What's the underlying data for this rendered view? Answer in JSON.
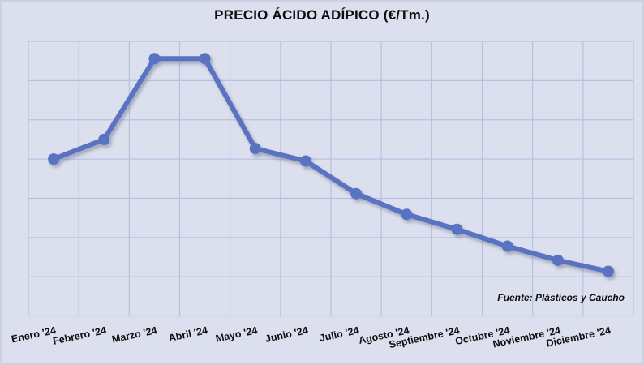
{
  "chart_data": {
    "type": "line",
    "title": "PRECIO ÁCIDO ADÍPICO (€/Tm.)",
    "source_note": "Fuente: Plásticos y Caucho",
    "categories": [
      "Enero '24",
      "Febrero '24",
      "Marzo '24",
      "Abril '24",
      "Mayo '24",
      "Junio '24",
      "Julio '24",
      "Agosto '24",
      "Septiembre '24",
      "Octubre '24",
      "Noviembre '24",
      "Diciembre '24"
    ],
    "series": [
      {
        "name": "Precio ácido adípico (€/Tm.)",
        "values": [
          4.0,
          4.5,
          6.56,
          6.56,
          4.27,
          3.95,
          3.12,
          2.59,
          2.21,
          1.78,
          1.42,
          1.14
        ]
      }
    ],
    "y_axis": {
      "tick_labels_visible": false,
      "units": "relative gridline units (y-axis shows no numeric labels)",
      "range": [
        0,
        7
      ],
      "gridline_rows": 7
    },
    "x_axis": {
      "label_rotation_deg": -12
    },
    "legend": false,
    "grid": true,
    "marker": "circle",
    "colors": {
      "line": "#5a72c2",
      "gridline": "#b6c1e2",
      "background": "#dce0ee",
      "border": "#ccd1e0",
      "text": "#0d0d0d",
      "shadow": "#6e7890"
    }
  }
}
